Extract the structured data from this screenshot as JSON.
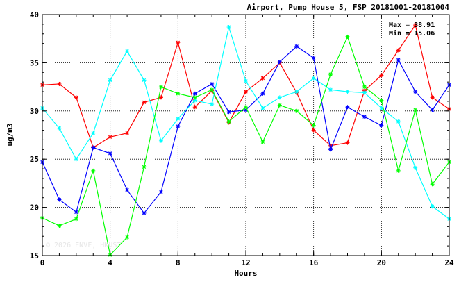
{
  "chart_data": {
    "type": "line",
    "title": "Airport, Pump House 5, FSP 20181001-20181004",
    "xlabel": "Hours",
    "ylabel": "ug/m3",
    "xlim": [
      0,
      24
    ],
    "ylim": [
      15,
      40
    ],
    "xticks": [
      "0",
      "4",
      "8",
      "12",
      "16",
      "20",
      "24"
    ],
    "yticks": [
      "15",
      "20",
      "25",
      "30",
      "35",
      "40"
    ],
    "grid": "dotted",
    "x": [
      0,
      1,
      2,
      3,
      4,
      5,
      6,
      7,
      8,
      9,
      10,
      11,
      12,
      13,
      14,
      15,
      16,
      17,
      18,
      19,
      20,
      21,
      22,
      23,
      24
    ],
    "series": [
      {
        "color": "#ff0000",
        "values": [
          32.7,
          32.8,
          31.4,
          26.2,
          27.3,
          27.7,
          30.9,
          31.4,
          37.1,
          30.4,
          32.1,
          28.8,
          32.0,
          33.4,
          35.0,
          31.9,
          28.0,
          26.4,
          26.7,
          32.1,
          33.7,
          36.3,
          38.91,
          31.4,
          30.2
        ]
      },
      {
        "color": "#0000ff",
        "values": [
          24.7,
          20.8,
          19.5,
          26.2,
          25.6,
          21.8,
          19.4,
          21.6,
          28.4,
          31.8,
          32.8,
          29.9,
          30.1,
          31.8,
          35.1,
          36.7,
          35.5,
          26.0,
          30.4,
          29.4,
          28.5,
          35.3,
          32.0,
          30.1,
          32.7
        ]
      },
      {
        "color": "#00ffff",
        "values": [
          30.3,
          28.2,
          25.0,
          27.7,
          33.2,
          36.2,
          33.2,
          26.9,
          29.2,
          31.1,
          30.7,
          38.7,
          33.1,
          30.3,
          31.4,
          32.0,
          33.4,
          32.2,
          32.0,
          31.9,
          30.3,
          28.9,
          24.1,
          20.1,
          18.8
        ]
      },
      {
        "color": "#00ff00",
        "values": [
          18.9,
          18.1,
          18.8,
          23.8,
          15.06,
          16.9,
          24.2,
          32.5,
          31.8,
          31.4,
          32.2,
          28.9,
          30.4,
          26.8,
          30.6,
          30.0,
          28.5,
          33.8,
          37.7,
          32.5,
          31.1,
          23.8,
          30.1,
          22.4,
          24.7
        ]
      }
    ],
    "annotations": {
      "max_label": "Max = 38.91",
      "min_label": "Min = 15.06"
    },
    "watermark": "© 2026 ENVF, HKUST"
  }
}
